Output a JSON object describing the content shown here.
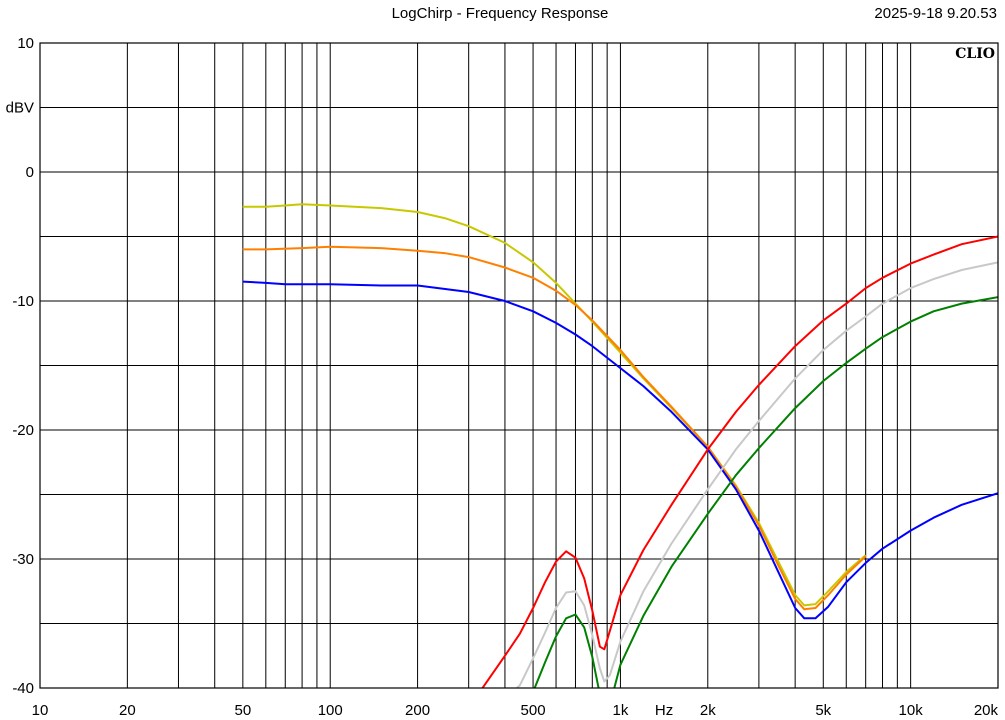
{
  "header": {
    "title": "LogChirp - Frequency Response",
    "timestamp": "2025-9-18 9.20.53"
  },
  "brand": "CLIO",
  "chart_data": {
    "type": "line",
    "title": "LogChirp - Frequency Response",
    "xlabel": "Hz",
    "ylabel": "dBV",
    "x_scale": "log",
    "xlim": [
      10,
      20000
    ],
    "ylim": [
      -40,
      10
    ],
    "grid": true,
    "y_ticks": [
      10,
      0,
      -10,
      -20,
      -30,
      -40
    ],
    "y_unit_label_at": 5,
    "x_tick_labels": [
      {
        "value": 10,
        "label": "10"
      },
      {
        "value": 20,
        "label": "20"
      },
      {
        "value": 50,
        "label": "50"
      },
      {
        "value": 100,
        "label": "100"
      },
      {
        "value": 200,
        "label": "200"
      },
      {
        "value": 500,
        "label": "500"
      },
      {
        "value": 1000,
        "label": "1k"
      },
      {
        "value": 2000,
        "label": "2k"
      },
      {
        "value": 5000,
        "label": "5k"
      },
      {
        "value": 10000,
        "label": "10k"
      },
      {
        "value": 20000,
        "label": "20k"
      }
    ],
    "series": [
      {
        "color": "#c8c800",
        "points": [
          [
            50,
            -2.7
          ],
          [
            60,
            -2.7
          ],
          [
            70,
            -2.6
          ],
          [
            80,
            -2.5
          ],
          [
            100,
            -2.6
          ],
          [
            150,
            -2.8
          ],
          [
            200,
            -3.1
          ],
          [
            250,
            -3.6
          ],
          [
            300,
            -4.2
          ],
          [
            400,
            -5.5
          ],
          [
            500,
            -7.0
          ],
          [
            600,
            -8.6
          ],
          [
            700,
            -10.2
          ],
          [
            800,
            -11.6
          ],
          [
            1000,
            -14.0
          ],
          [
            1200,
            -16.0
          ],
          [
            1500,
            -18.3
          ],
          [
            2000,
            -21.3
          ],
          [
            2500,
            -24.3
          ],
          [
            3000,
            -27.2
          ],
          [
            3500,
            -30.2
          ],
          [
            4000,
            -32.8
          ],
          [
            4300,
            -33.6
          ],
          [
            4700,
            -33.5
          ],
          [
            5200,
            -32.5
          ],
          [
            6000,
            -31.0
          ],
          [
            7000,
            -29.7
          ]
        ]
      },
      {
        "color": "#ff8000",
        "points": [
          [
            50,
            -6.0
          ],
          [
            60,
            -6.0
          ],
          [
            80,
            -5.9
          ],
          [
            100,
            -5.8
          ],
          [
            150,
            -5.9
          ],
          [
            200,
            -6.1
          ],
          [
            250,
            -6.3
          ],
          [
            300,
            -6.6
          ],
          [
            400,
            -7.4
          ],
          [
            500,
            -8.2
          ],
          [
            600,
            -9.2
          ],
          [
            700,
            -10.3
          ],
          [
            800,
            -11.5
          ],
          [
            1000,
            -13.8
          ],
          [
            1200,
            -15.9
          ],
          [
            1500,
            -18.2
          ],
          [
            2000,
            -21.3
          ],
          [
            2500,
            -24.4
          ],
          [
            3000,
            -27.4
          ],
          [
            3500,
            -30.5
          ],
          [
            4000,
            -33.1
          ],
          [
            4300,
            -33.9
          ],
          [
            4700,
            -33.8
          ],
          [
            5200,
            -32.8
          ],
          [
            6000,
            -31.2
          ],
          [
            7000,
            -29.8
          ]
        ]
      },
      {
        "color": "#0000ff",
        "points": [
          [
            50,
            -8.5
          ],
          [
            60,
            -8.6
          ],
          [
            70,
            -8.7
          ],
          [
            100,
            -8.7
          ],
          [
            150,
            -8.8
          ],
          [
            200,
            -8.8
          ],
          [
            300,
            -9.3
          ],
          [
            400,
            -10.0
          ],
          [
            500,
            -10.8
          ],
          [
            600,
            -11.7
          ],
          [
            700,
            -12.6
          ],
          [
            800,
            -13.5
          ],
          [
            1000,
            -15.2
          ],
          [
            1200,
            -16.6
          ],
          [
            1500,
            -18.6
          ],
          [
            2000,
            -21.5
          ],
          [
            2500,
            -24.6
          ],
          [
            3000,
            -27.8
          ],
          [
            3500,
            -31.0
          ],
          [
            4000,
            -33.8
          ],
          [
            4300,
            -34.6
          ],
          [
            4700,
            -34.6
          ],
          [
            5200,
            -33.7
          ],
          [
            6000,
            -31.8
          ],
          [
            7000,
            -30.3
          ],
          [
            8000,
            -29.2
          ],
          [
            10000,
            -27.8
          ],
          [
            12000,
            -26.8
          ],
          [
            15000,
            -25.8
          ],
          [
            20000,
            -24.9
          ]
        ]
      },
      {
        "color": "#ff0000",
        "points": [
          [
            330,
            -40.2
          ],
          [
            400,
            -37.5
          ],
          [
            450,
            -35.8
          ],
          [
            500,
            -33.8
          ],
          [
            550,
            -31.8
          ],
          [
            600,
            -30.2
          ],
          [
            650,
            -29.4
          ],
          [
            700,
            -29.9
          ],
          [
            750,
            -31.5
          ],
          [
            800,
            -34.0
          ],
          [
            850,
            -36.8
          ],
          [
            880,
            -37.0
          ],
          [
            930,
            -35.2
          ],
          [
            1000,
            -32.8
          ],
          [
            1200,
            -29.3
          ],
          [
            1500,
            -25.8
          ],
          [
            2000,
            -21.5
          ],
          [
            2500,
            -18.6
          ],
          [
            3000,
            -16.5
          ],
          [
            4000,
            -13.5
          ],
          [
            5000,
            -11.5
          ],
          [
            6000,
            -10.2
          ],
          [
            7000,
            -9.0
          ],
          [
            8000,
            -8.2
          ],
          [
            10000,
            -7.1
          ],
          [
            12000,
            -6.4
          ],
          [
            15000,
            -5.6
          ],
          [
            20000,
            -5.0
          ]
        ]
      },
      {
        "color": "#c8c8c8",
        "points": [
          [
            400,
            -40.8
          ],
          [
            450,
            -39.8
          ],
          [
            500,
            -37.7
          ],
          [
            550,
            -35.7
          ],
          [
            600,
            -33.8
          ],
          [
            650,
            -32.6
          ],
          [
            700,
            -32.5
          ],
          [
            750,
            -33.6
          ],
          [
            800,
            -35.9
          ],
          [
            850,
            -38.5
          ],
          [
            880,
            -39.5
          ],
          [
            920,
            -39.0
          ],
          [
            1000,
            -36.4
          ],
          [
            1200,
            -32.5
          ],
          [
            1500,
            -28.8
          ],
          [
            2000,
            -24.6
          ],
          [
            2500,
            -21.5
          ],
          [
            3000,
            -19.3
          ],
          [
            4000,
            -16.0
          ],
          [
            5000,
            -13.8
          ],
          [
            6000,
            -12.3
          ],
          [
            7000,
            -11.2
          ],
          [
            8000,
            -10.2
          ],
          [
            10000,
            -9.0
          ],
          [
            12000,
            -8.3
          ],
          [
            15000,
            -7.6
          ],
          [
            20000,
            -7.0
          ]
        ]
      },
      {
        "color": "#008000",
        "points": [
          [
            500,
            -40.3
          ],
          [
            550,
            -38.0
          ],
          [
            600,
            -36.0
          ],
          [
            650,
            -34.6
          ],
          [
            700,
            -34.3
          ],
          [
            750,
            -35.3
          ],
          [
            800,
            -37.6
          ],
          [
            850,
            -40.5
          ],
          [
            940,
            -40.5
          ],
          [
            1000,
            -38.2
          ],
          [
            1200,
            -34.4
          ],
          [
            1500,
            -30.6
          ],
          [
            2000,
            -26.5
          ],
          [
            2500,
            -23.5
          ],
          [
            3000,
            -21.4
          ],
          [
            4000,
            -18.3
          ],
          [
            5000,
            -16.2
          ],
          [
            6000,
            -14.8
          ],
          [
            7000,
            -13.7
          ],
          [
            8000,
            -12.8
          ],
          [
            10000,
            -11.6
          ],
          [
            12000,
            -10.8
          ],
          [
            15000,
            -10.2
          ],
          [
            20000,
            -9.7
          ]
        ]
      }
    ]
  }
}
